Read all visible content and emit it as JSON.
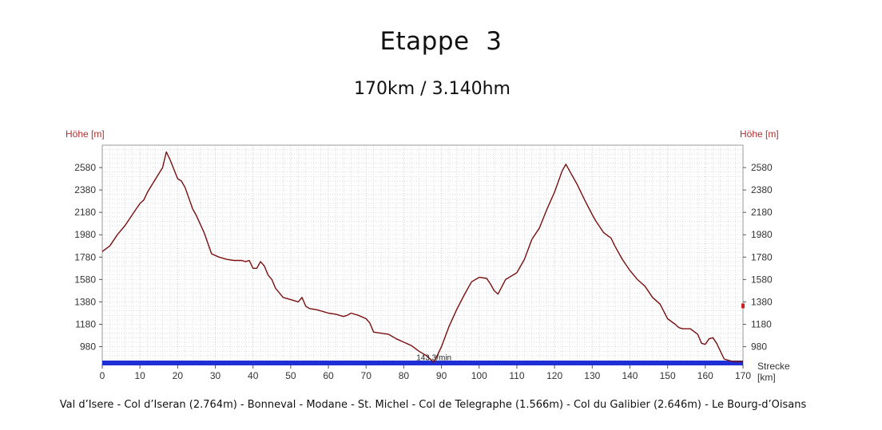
{
  "header": {
    "title": "Etappe  3",
    "subtitle": "170km / 3.140hm"
  },
  "footer": {
    "route": "Val d’Isere - Col d’Iseran (2.764m) - Bonneval - Modane - St. Michel - Col de Telegraphe (1.566m) - Col du Galibier (2.646m) - Le Bourg-d’Oisans"
  },
  "colors": {
    "profile_line": "#7a0e0e",
    "baseline": "#1f2fd6",
    "grid": "#c8c8c8",
    "axis_label": "#b03030"
  },
  "chart_data": {
    "type": "line",
    "ylabel_left": "Höhe [m]",
    "ylabel_right": "Höhe [m]",
    "xlabel_line1": "Strecke",
    "xlabel_line2": "[km]",
    "xlim": [
      0,
      170
    ],
    "ylim": [
      820,
      2780
    ],
    "grid": true,
    "x_ticks": [
      0,
      10,
      20,
      30,
      40,
      50,
      60,
      70,
      80,
      90,
      100,
      110,
      120,
      130,
      140,
      150,
      160,
      170
    ],
    "y_ticks": [
      980,
      1180,
      1380,
      1580,
      1780,
      1980,
      2180,
      2380,
      2580
    ],
    "annotation": {
      "text": "143.3/min",
      "x": 88,
      "y": 880
    },
    "series": [
      {
        "x": [
          0,
          2,
          4,
          6,
          8,
          10,
          11,
          12,
          14,
          16,
          17,
          18,
          20,
          21,
          22,
          24,
          25,
          27,
          29,
          31,
          33,
          35,
          37,
          38,
          39,
          40,
          41,
          42,
          43,
          44,
          45,
          46,
          47,
          48,
          50,
          52,
          53,
          54,
          55,
          57,
          60,
          62,
          64,
          65,
          66,
          68,
          70,
          71,
          72,
          74,
          76,
          78,
          80,
          82,
          84,
          86,
          88,
          90,
          92,
          94,
          96,
          98,
          100,
          102,
          103,
          104,
          105,
          107,
          110,
          112,
          114,
          116,
          118,
          120,
          122,
          123,
          124,
          126,
          128,
          130,
          131,
          133,
          135,
          136,
          138,
          140,
          142,
          144,
          146,
          148,
          150,
          152,
          153,
          154,
          156,
          158,
          159,
          160,
          161,
          162,
          163,
          165,
          167,
          170
        ],
        "y": [
          1830,
          1880,
          1980,
          2060,
          2160,
          2260,
          2290,
          2360,
          2470,
          2580,
          2720,
          2650,
          2480,
          2460,
          2400,
          2210,
          2150,
          2000,
          1810,
          1780,
          1760,
          1750,
          1750,
          1740,
          1750,
          1680,
          1680,
          1740,
          1700,
          1620,
          1580,
          1500,
          1460,
          1420,
          1400,
          1380,
          1420,
          1340,
          1320,
          1310,
          1280,
          1270,
          1250,
          1260,
          1280,
          1260,
          1230,
          1190,
          1110,
          1100,
          1090,
          1050,
          1020,
          990,
          940,
          900,
          840,
          980,
          1160,
          1310,
          1440,
          1560,
          1600,
          1590,
          1540,
          1480,
          1450,
          1580,
          1640,
          1760,
          1940,
          2040,
          2210,
          2360,
          2550,
          2610,
          2550,
          2430,
          2290,
          2160,
          2100,
          2000,
          1950,
          1880,
          1760,
          1660,
          1580,
          1520,
          1420,
          1360,
          1230,
          1180,
          1150,
          1140,
          1140,
          1090,
          1010,
          1000,
          1050,
          1060,
          1010,
          870,
          850,
          845
        ]
      }
    ]
  }
}
